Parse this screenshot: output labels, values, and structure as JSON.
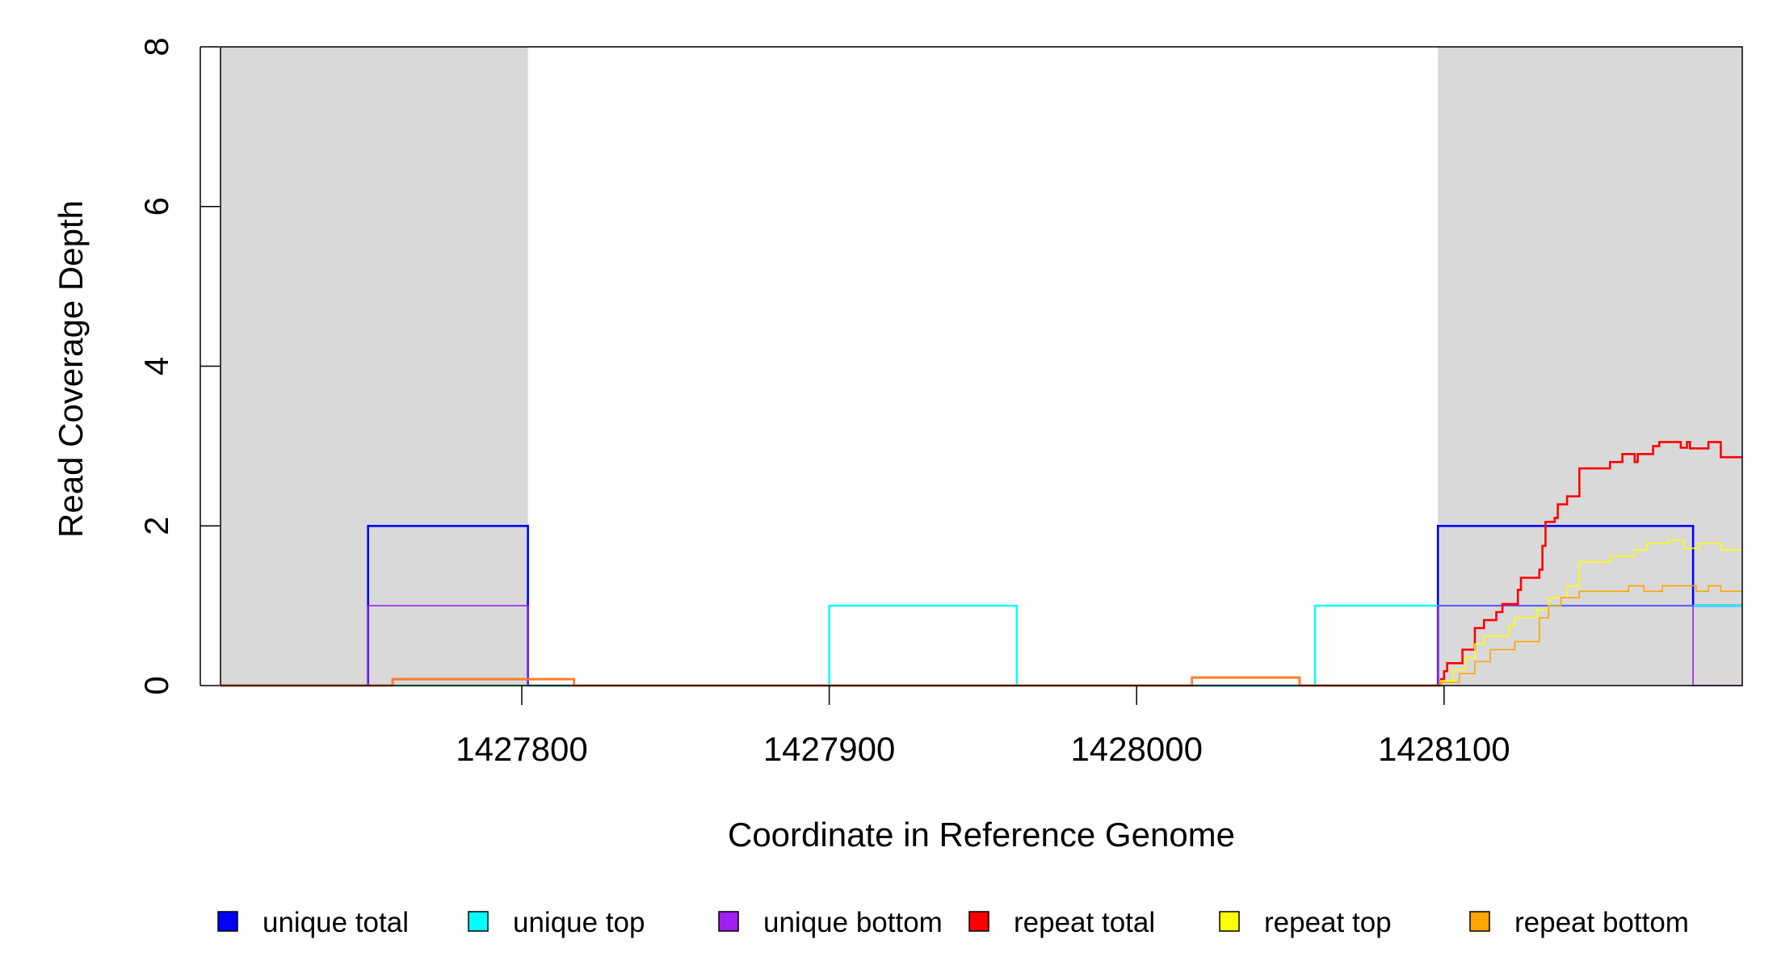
{
  "chart_data": {
    "type": "line",
    "step": true,
    "xlabel": "Coordinate in Reference Genome",
    "ylabel": "Read Coverage Depth",
    "xlim": [
      1427702,
      1428197
    ],
    "ylim": [
      0,
      8
    ],
    "x_ticks": [
      1427800,
      1427900,
      1428000,
      1428100
    ],
    "x_tick_labels": [
      "1427800",
      "1427900",
      "1428000",
      "1428100"
    ],
    "y_ticks": [
      0,
      2,
      4,
      6,
      8
    ],
    "y_tick_labels": [
      "0",
      "2",
      "4",
      "6",
      "8"
    ],
    "shaded_regions": [
      {
        "x": [
          1427702,
          1427802
        ],
        "color": "#d9d9d9"
      },
      {
        "x": [
          1428098,
          1428197
        ],
        "color": "#d9d9d9"
      }
    ],
    "legend_position": "bottom",
    "legend": [
      {
        "label": "unique total",
        "color": "#0000ff"
      },
      {
        "label": "unique top",
        "color": "#00ffff"
      },
      {
        "label": "unique bottom",
        "color": "#a020f0"
      },
      {
        "label": "repeat total",
        "color": "#ff0000"
      },
      {
        "label": "repeat top",
        "color": "#ffff00"
      },
      {
        "label": "repeat bottom",
        "color": "#ffa500"
      }
    ],
    "series": [
      {
        "name": "unique total",
        "color": "#0000ff",
        "width": 2.6,
        "points": [
          [
            1427702,
            0
          ],
          [
            1427750,
            0
          ],
          [
            1427750,
            2
          ],
          [
            1427802,
            2
          ],
          [
            1427802,
            0
          ],
          [
            1428098,
            0
          ],
          [
            1428098,
            2
          ],
          [
            1428181,
            2
          ],
          [
            1428181,
            1
          ],
          [
            1428197,
            1
          ]
        ]
      },
      {
        "name": "unique top",
        "color": "#00ffff",
        "width": 2.4,
        "points": [
          [
            1427702,
            0
          ],
          [
            1427900,
            0
          ],
          [
            1427900,
            1
          ],
          [
            1427961,
            1
          ],
          [
            1427961,
            0
          ],
          [
            1428058,
            0
          ],
          [
            1428058,
            1
          ],
          [
            1428098,
            1
          ],
          [
            1428098,
            1
          ],
          [
            1428197,
            1
          ]
        ]
      },
      {
        "name": "unique bottom",
        "color": "#a020f0",
        "width": 1.6,
        "points": [
          [
            1427702,
            0
          ],
          [
            1427750,
            0
          ],
          [
            1427750,
            1
          ],
          [
            1427802,
            1
          ],
          [
            1427802,
            0
          ],
          [
            1428098,
            0
          ],
          [
            1428098,
            1
          ],
          [
            1428181,
            1
          ],
          [
            1428181,
            0
          ],
          [
            1428197,
            0
          ]
        ]
      },
      {
        "name": "repeat total",
        "color": "#ff0000",
        "width": 2.6,
        "points": [
          [
            1427702,
            0
          ],
          [
            1427758,
            0
          ],
          [
            1427758,
            0.08
          ],
          [
            1427817,
            0.08
          ],
          [
            1427817,
            0
          ],
          [
            1428018,
            0
          ],
          [
            1428018,
            0.1
          ],
          [
            1428053,
            0.1
          ],
          [
            1428053,
            0
          ],
          [
            1428099,
            0
          ],
          [
            1428099,
            0.08
          ],
          [
            1428100,
            0.08
          ],
          [
            1428100,
            0.18
          ],
          [
            1428101,
            0.18
          ],
          [
            1428101,
            0.28
          ],
          [
            1428106,
            0.28
          ],
          [
            1428106,
            0.45
          ],
          [
            1428110,
            0.45
          ],
          [
            1428110,
            0.72
          ],
          [
            1428113,
            0.72
          ],
          [
            1428113,
            0.82
          ],
          [
            1428117,
            0.82
          ],
          [
            1428117,
            0.92
          ],
          [
            1428119,
            0.92
          ],
          [
            1428119,
            1.02
          ],
          [
            1428124,
            1.02
          ],
          [
            1428124,
            1.2
          ],
          [
            1428125,
            1.2
          ],
          [
            1428125,
            1.35
          ],
          [
            1428131,
            1.35
          ],
          [
            1428131,
            1.45
          ],
          [
            1428132,
            1.45
          ],
          [
            1428132,
            1.75
          ],
          [
            1428133,
            1.75
          ],
          [
            1428133,
            2.05
          ],
          [
            1428136,
            2.05
          ],
          [
            1428136,
            2.1
          ],
          [
            1428137,
            2.1
          ],
          [
            1428137,
            2.27
          ],
          [
            1428140,
            2.27
          ],
          [
            1428140,
            2.37
          ],
          [
            1428144,
            2.37
          ],
          [
            1428144,
            2.72
          ],
          [
            1428154,
            2.72
          ],
          [
            1428154,
            2.8
          ],
          [
            1428158,
            2.8
          ],
          [
            1428158,
            2.9
          ],
          [
            1428162,
            2.9
          ],
          [
            1428162,
            2.8
          ],
          [
            1428163,
            2.8
          ],
          [
            1428163,
            2.9
          ],
          [
            1428168,
            2.9
          ],
          [
            1428168,
            3.0
          ],
          [
            1428170,
            3.0
          ],
          [
            1428170,
            3.05
          ],
          [
            1428177,
            3.05
          ],
          [
            1428177,
            2.98
          ],
          [
            1428179,
            2.98
          ],
          [
            1428179,
            3.05
          ],
          [
            1428180,
            3.05
          ],
          [
            1428180,
            2.97
          ],
          [
            1428186,
            2.97
          ],
          [
            1428186,
            3.05
          ],
          [
            1428190,
            3.05
          ],
          [
            1428190,
            2.86
          ],
          [
            1428197,
            2.86
          ]
        ]
      },
      {
        "name": "repeat top",
        "color": "#ffff00",
        "width": 1.6,
        "points": [
          [
            1427702,
            0
          ],
          [
            1428099,
            0
          ],
          [
            1428099,
            0.06
          ],
          [
            1428103,
            0.06
          ],
          [
            1428103,
            0.2
          ],
          [
            1428107,
            0.2
          ],
          [
            1428107,
            0.35
          ],
          [
            1428110,
            0.35
          ],
          [
            1428110,
            0.52
          ],
          [
            1428113,
            0.52
          ],
          [
            1428113,
            0.62
          ],
          [
            1428121,
            0.62
          ],
          [
            1428121,
            0.75
          ],
          [
            1428123,
            0.75
          ],
          [
            1428123,
            0.85
          ],
          [
            1428130,
            0.85
          ],
          [
            1428130,
            0.95
          ],
          [
            1428134,
            0.95
          ],
          [
            1428134,
            1.1
          ],
          [
            1428140,
            1.1
          ],
          [
            1428140,
            1.25
          ],
          [
            1428144,
            1.25
          ],
          [
            1428144,
            1.55
          ],
          [
            1428154,
            1.55
          ],
          [
            1428154,
            1.62
          ],
          [
            1428162,
            1.62
          ],
          [
            1428162,
            1.7
          ],
          [
            1428166,
            1.7
          ],
          [
            1428166,
            1.78
          ],
          [
            1428173,
            1.78
          ],
          [
            1428173,
            1.82
          ],
          [
            1428178,
            1.82
          ],
          [
            1428178,
            1.72
          ],
          [
            1428183,
            1.72
          ],
          [
            1428183,
            1.78
          ],
          [
            1428190,
            1.78
          ],
          [
            1428190,
            1.7
          ],
          [
            1428197,
            1.7
          ]
        ]
      },
      {
        "name": "repeat bottom",
        "color": "#ffa500",
        "width": 1.6,
        "points": [
          [
            1427702,
            0
          ],
          [
            1428099,
            0
          ],
          [
            1428099,
            0.04
          ],
          [
            1428105,
            0.04
          ],
          [
            1428105,
            0.15
          ],
          [
            1428110,
            0.15
          ],
          [
            1428110,
            0.3
          ],
          [
            1428115,
            0.3
          ],
          [
            1428115,
            0.45
          ],
          [
            1428123,
            0.45
          ],
          [
            1428123,
            0.55
          ],
          [
            1428131,
            0.55
          ],
          [
            1428131,
            0.85
          ],
          [
            1428134,
            0.85
          ],
          [
            1428134,
            1.0
          ],
          [
            1428138,
            1.0
          ],
          [
            1428138,
            1.1
          ],
          [
            1428144,
            1.1
          ],
          [
            1428144,
            1.18
          ],
          [
            1428160,
            1.18
          ],
          [
            1428160,
            1.25
          ],
          [
            1428165,
            1.25
          ],
          [
            1428165,
            1.18
          ],
          [
            1428171,
            1.18
          ],
          [
            1428171,
            1.25
          ],
          [
            1428182,
            1.25
          ],
          [
            1428182,
            1.18
          ],
          [
            1428186,
            1.18
          ],
          [
            1428186,
            1.25
          ],
          [
            1428190,
            1.25
          ],
          [
            1428190,
            1.18
          ],
          [
            1428197,
            1.18
          ]
        ]
      },
      {
        "name": "repeat total",
        "color": "#ff7f27",
        "width": 2.6,
        "points": [
          [
            1427702,
            0
          ],
          [
            1427758,
            0
          ],
          [
            1427758,
            0.08
          ],
          [
            1427817,
            0.08
          ],
          [
            1427817,
            0
          ],
          [
            1428018,
            0
          ],
          [
            1428018,
            0.1
          ],
          [
            1428053,
            0.1
          ],
          [
            1428053,
            0
          ],
          [
            1428099,
            0
          ]
        ]
      }
    ]
  }
}
